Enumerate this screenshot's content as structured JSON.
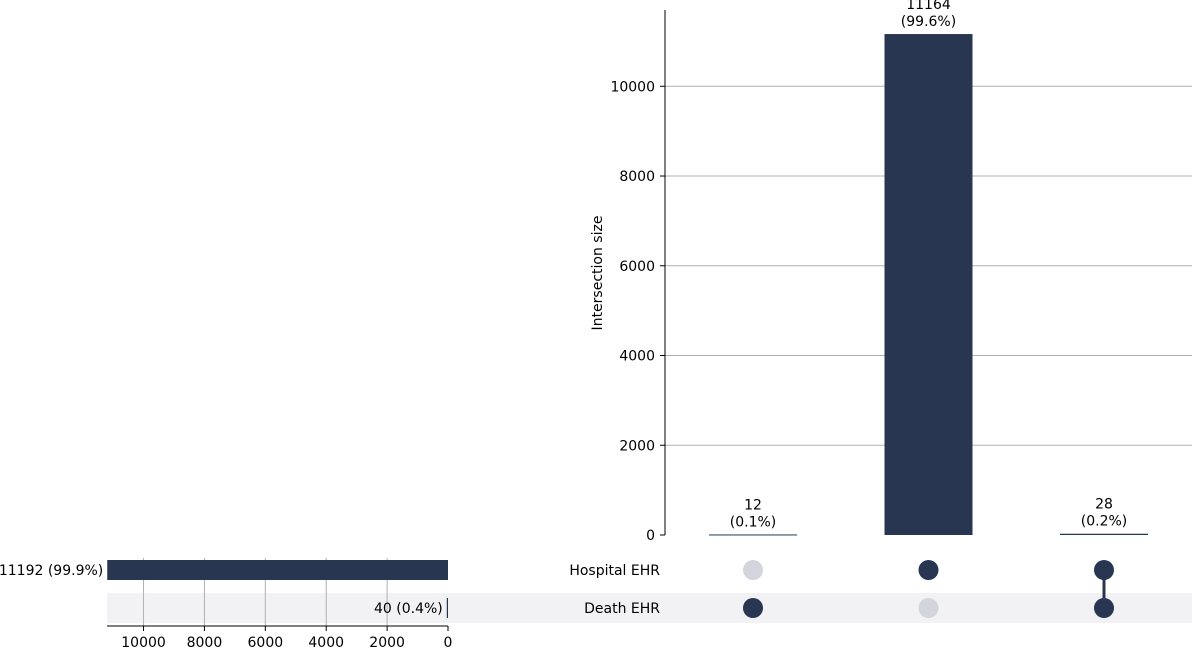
{
  "chart_data": {
    "type": "bar",
    "subtype": "upset",
    "colors": {
      "bar": "#283652",
      "dot_active": "#283652",
      "dot_inactive": "#d2d5db",
      "row_shade": "#f2f2f4",
      "grid": "#b0b0b0"
    },
    "intersections": {
      "ylabel": "Intersection size",
      "ylim": [
        0,
        11700
      ],
      "yticks": [
        0,
        2000,
        4000,
        6000,
        8000,
        10000
      ],
      "grid": true,
      "items": [
        {
          "sets": [
            "Death EHR"
          ],
          "value": 12,
          "value_label": "12",
          "pct_label": "(0.1%)"
        },
        {
          "sets": [
            "Hospital EHR"
          ],
          "value": 11164,
          "value_label": "11164",
          "pct_label": "(99.6%)"
        },
        {
          "sets": [
            "Hospital EHR",
            "Death EHR"
          ],
          "value": 28,
          "value_label": "28",
          "pct_label": "(0.2%)"
        }
      ]
    },
    "sets": {
      "xlim": [
        11200,
        0
      ],
      "xticks": [
        10000,
        8000,
        6000,
        4000,
        2000,
        0
      ],
      "grid": true,
      "items": [
        {
          "name": "Hospital EHR",
          "value": 11192,
          "label": "11192 (99.9%)"
        },
        {
          "name": "Death EHR",
          "value": 40,
          "label": "40 (0.4%)"
        }
      ]
    }
  }
}
